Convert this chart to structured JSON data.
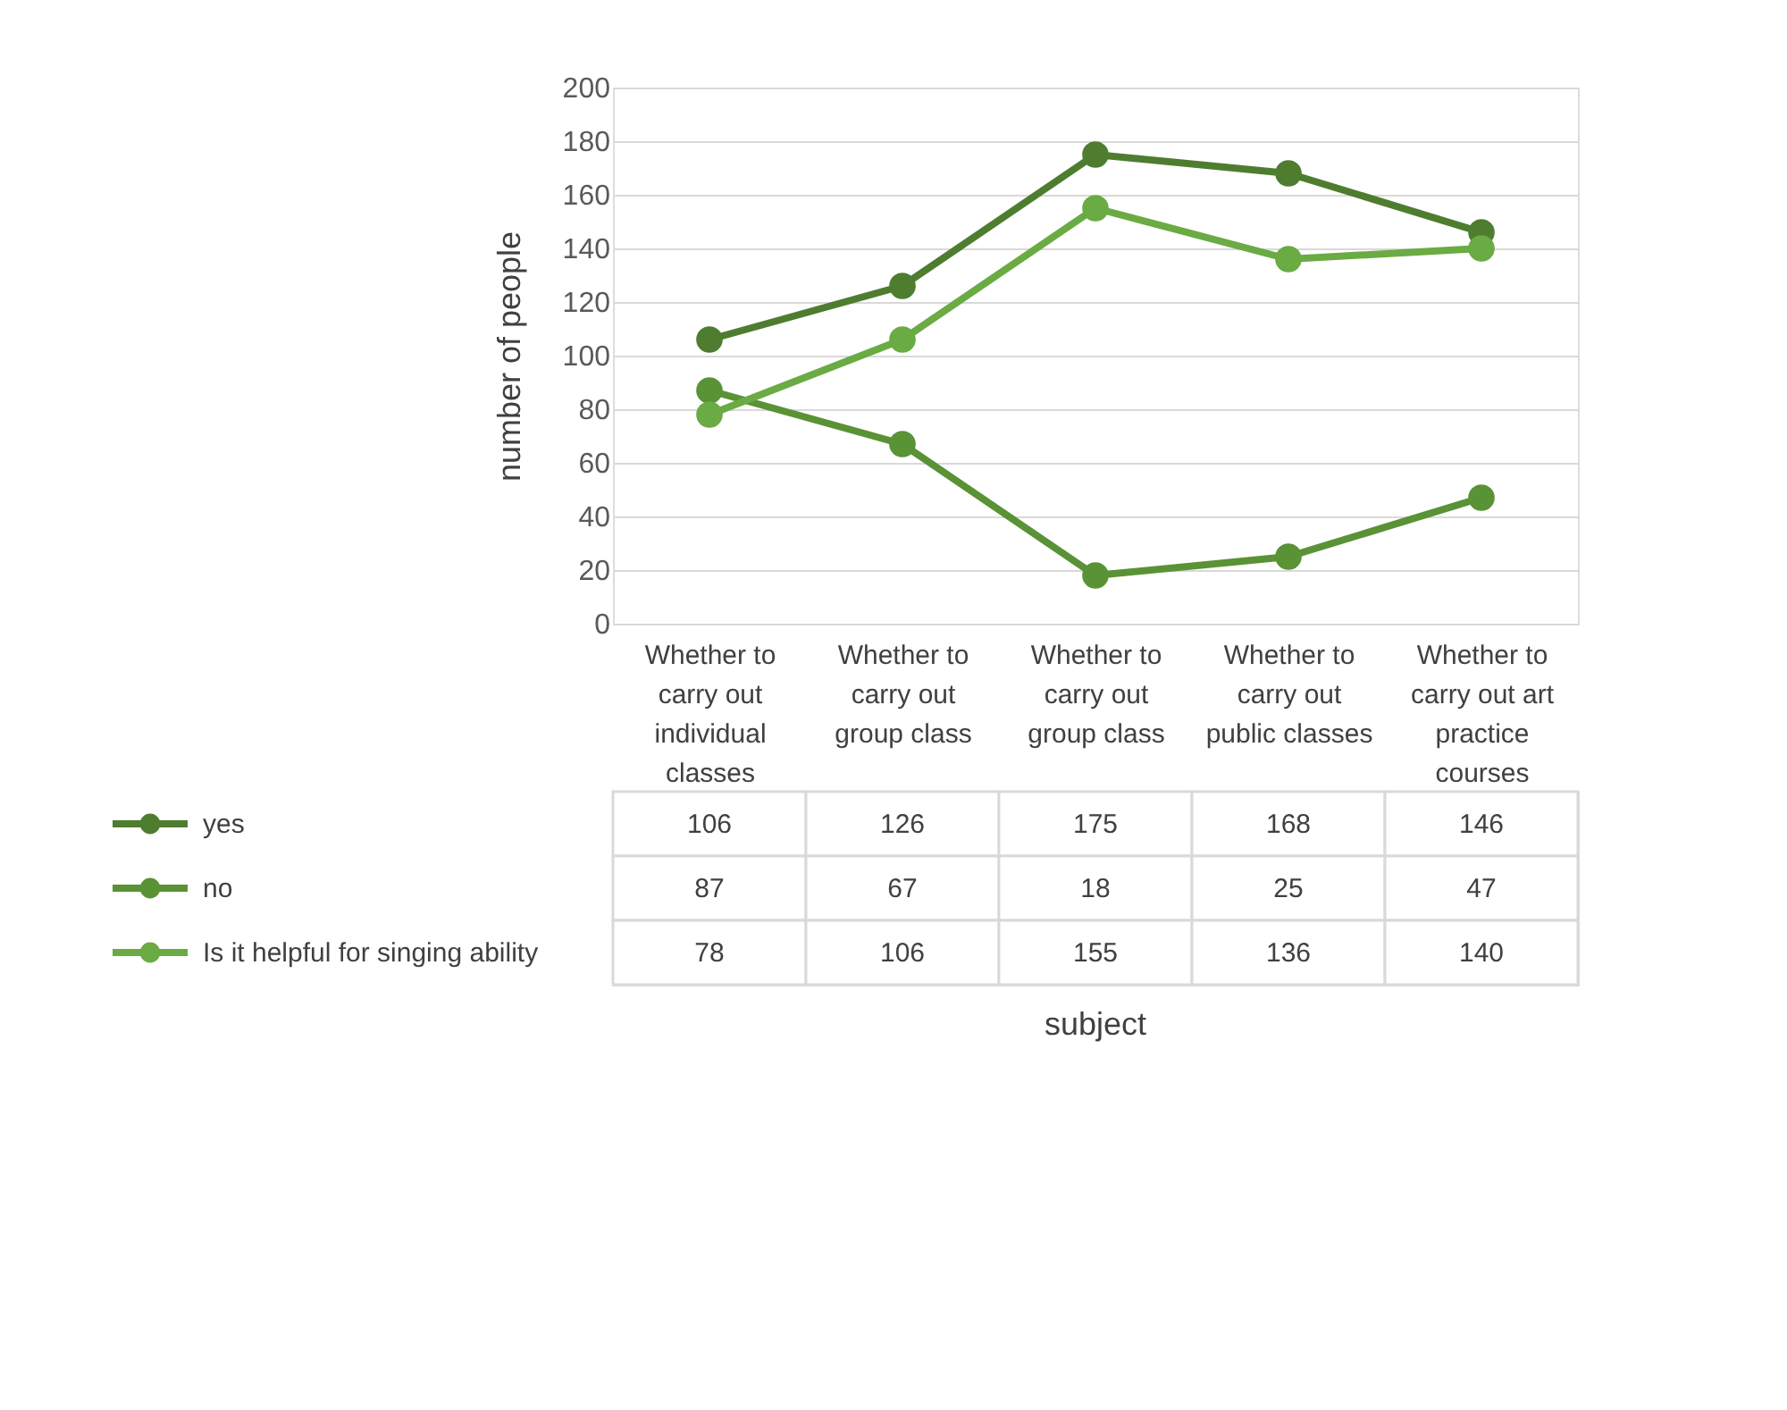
{
  "chart_data": {
    "type": "line",
    "annotations": [
      "subject"
    ],
    "ylabel": "number of people",
    "categories": [
      "Whether to carry out individual classes",
      "Whether to carry out group class",
      "Whether to carry out group class",
      "Whether to carry out public classes",
      "Whether to carry out art practice courses"
    ],
    "series": [
      {
        "name": "yes",
        "color": "#4e7d30",
        "values": [
          106,
          126,
          175,
          168,
          146
        ]
      },
      {
        "name": "no",
        "color": "#5a9236",
        "values": [
          87,
          67,
          18,
          25,
          47
        ]
      },
      {
        "name": "Is it helpful for singing ability",
        "color": "#6aab44",
        "values": [
          78,
          106,
          155,
          136,
          140
        ]
      }
    ],
    "ylim": [
      0,
      200
    ],
    "yticks": [
      0,
      20,
      40,
      60,
      80,
      100,
      120,
      140,
      160,
      180,
      200
    ],
    "grid": "y",
    "marker": "circle",
    "line_style": "solid",
    "legend": "bottom",
    "data_labels": true
  }
}
